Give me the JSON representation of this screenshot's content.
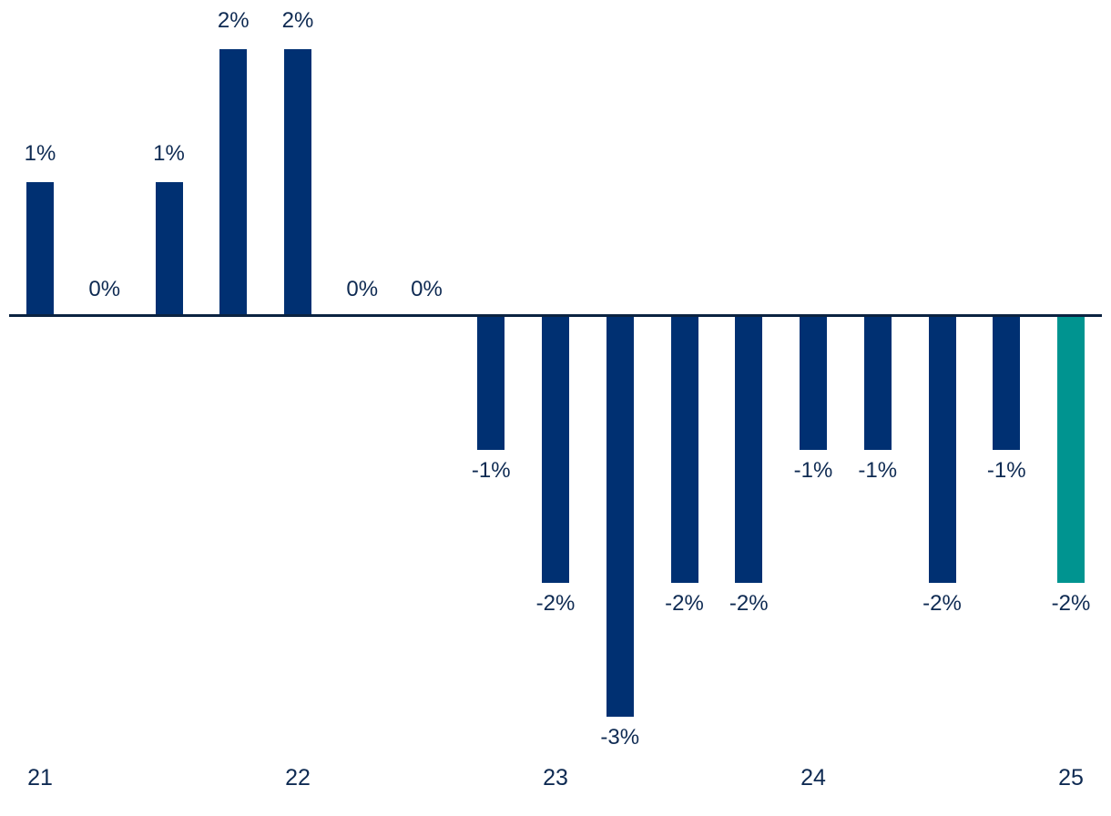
{
  "chart_data": {
    "type": "bar",
    "title": "",
    "xlabel": "",
    "ylabel": "",
    "unit": "percent",
    "values": [
      1,
      0,
      1,
      2,
      2,
      0,
      0,
      -1,
      -2,
      -3,
      -2,
      -2,
      -1,
      -1,
      -2,
      -1,
      -2
    ],
    "bar_labels": [
      "1%",
      "0%",
      "1%",
      "2%",
      "2%",
      "0%",
      "0%",
      "-1%",
      "-2%",
      "-3%",
      "-2%",
      "-2%",
      "-1%",
      "-1%",
      "-2%",
      "-1%",
      "-2%"
    ],
    "x_ticks": [
      {
        "label": "21",
        "bar_index": 0
      },
      {
        "label": "22",
        "bar_index": 4
      },
      {
        "label": "23",
        "bar_index": 8
      },
      {
        "label": "24",
        "bar_index": 12
      },
      {
        "label": "25",
        "bar_index": 16
      }
    ],
    "ylim": [
      -3.5,
      2.5
    ],
    "grid": false,
    "legend": false,
    "zero_baseline": true,
    "highlight_last_bar": true,
    "colors": {
      "bar": "#003072",
      "highlight_bar": "#009490",
      "label_text": "#0E2A52",
      "axis_line": "#0B2341",
      "background": "#FFFFFF"
    }
  }
}
